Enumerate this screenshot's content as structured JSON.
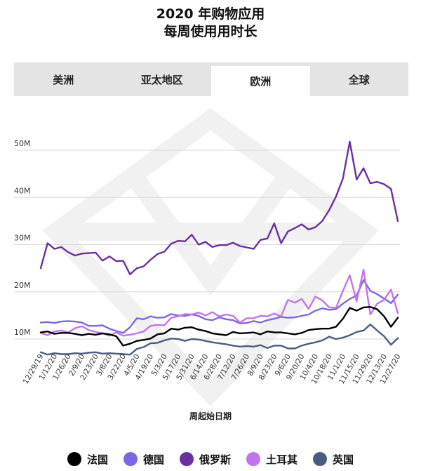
{
  "header": {
    "title_line1": "2020 年购物应用",
    "title_line2": "每周使用用时长"
  },
  "tabs": [
    {
      "label": "美洲",
      "active": false
    },
    {
      "label": "亚太地区",
      "active": false
    },
    {
      "label": "欧洲",
      "active": true
    },
    {
      "label": "全球",
      "active": false
    }
  ],
  "chart_data": {
    "type": "line",
    "title": "2020 年购物应用 每周使用用时长",
    "xlabel": "周起始日期",
    "ylabel": "",
    "ylim": [
      0,
      55
    ],
    "yticks": [
      10,
      20,
      30,
      40,
      50
    ],
    "ytick_labels": [
      "10M",
      "20M",
      "30M",
      "40M",
      "50M"
    ],
    "grid": true,
    "legend_position": "bottom",
    "x_tick_labels": [
      "12/29/19",
      "1/12/20",
      "1/26/20",
      "2/9/20",
      "2/23/20",
      "3/8/20",
      "3/22/20",
      "4/5/20",
      "4/19/20",
      "5/3/20",
      "5/17/20",
      "5/31/20",
      "6/14/20",
      "6/28/20",
      "7/12/20",
      "7/26/20",
      "8/9/20",
      "8/23/20",
      "9/6/20",
      "9/20/20",
      "10/4/20",
      "10/18/20",
      "11/1/20",
      "11/15/20",
      "11/29/20",
      "12/13/20",
      "12/27/20"
    ],
    "x": [
      "12/29/19",
      "1/5/20",
      "1/12/20",
      "1/19/20",
      "1/26/20",
      "2/2/20",
      "2/9/20",
      "2/16/20",
      "2/23/20",
      "3/1/20",
      "3/8/20",
      "3/15/20",
      "3/22/20",
      "3/29/20",
      "4/5/20",
      "4/12/20",
      "4/19/20",
      "4/26/20",
      "5/3/20",
      "5/10/20",
      "5/17/20",
      "5/24/20",
      "5/31/20",
      "6/7/20",
      "6/14/20",
      "6/21/20",
      "6/28/20",
      "7/5/20",
      "7/12/20",
      "7/19/20",
      "7/26/20",
      "8/2/20",
      "8/9/20",
      "8/16/20",
      "8/23/20",
      "8/30/20",
      "9/6/20",
      "9/13/20",
      "9/20/20",
      "9/27/20",
      "10/4/20",
      "10/11/20",
      "10/18/20",
      "10/25/20",
      "11/1/20",
      "11/8/20",
      "11/15/20",
      "11/22/20",
      "11/29/20",
      "12/6/20",
      "12/13/20",
      "12/20/20",
      "12/27/20"
    ],
    "series": [
      {
        "name": "法国",
        "color": "#000000",
        "values": [
          11.4,
          11.6,
          11.1,
          11.3,
          11.3,
          11.1,
          10.8,
          11.1,
          10.9,
          11.2,
          11.0,
          10.6,
          8.6,
          9.0,
          9.6,
          9.8,
          10.1,
          11.0,
          11.2,
          12.2,
          12.0,
          12.4,
          12.5,
          12.0,
          11.7,
          11.2,
          11.0,
          10.8,
          11.5,
          11.2,
          11.3,
          11.4,
          11.0,
          11.6,
          11.4,
          11.4,
          11.2,
          11.0,
          11.3,
          11.9,
          12.1,
          12.2,
          12.2,
          12.6,
          14.3,
          16.6,
          16.0,
          16.7,
          16.8,
          16.3,
          14.8,
          12.6,
          14.5
        ]
      },
      {
        "name": "德国",
        "color": "#7868e6",
        "values": [
          13.5,
          13.6,
          13.4,
          13.7,
          13.8,
          13.7,
          13.5,
          12.8,
          12.8,
          12.9,
          12.2,
          11.7,
          11.3,
          12.5,
          14.4,
          14.2,
          14.8,
          14.5,
          14.6,
          15.3,
          15.0,
          14.9,
          15.2,
          14.9,
          14.2,
          14.0,
          14.6,
          14.2,
          14.0,
          13.3,
          13.4,
          13.8,
          13.5,
          14.0,
          14.3,
          14.7,
          14.5,
          14.6,
          14.9,
          15.2,
          16.0,
          16.5,
          16.2,
          16.3,
          17.5,
          18.5,
          19.2,
          22.5,
          20.2,
          19.5,
          18.6,
          17.6,
          19.4
        ]
      },
      {
        "name": "俄罗斯",
        "color": "#6a2fa0",
        "values": [
          25.0,
          30.3,
          29.1,
          29.5,
          28.4,
          27.7,
          28.1,
          28.2,
          28.3,
          26.6,
          27.5,
          26.5,
          26.6,
          23.7,
          25.0,
          25.4,
          26.8,
          28.0,
          28.5,
          30.2,
          30.8,
          30.7,
          32.1,
          30.0,
          30.6,
          29.5,
          29.9,
          29.9,
          30.4,
          29.7,
          29.4,
          29.1,
          31.0,
          31.3,
          34.5,
          30.3,
          32.8,
          33.5,
          34.3,
          33.2,
          33.7,
          35.0,
          37.3,
          40.2,
          44.0,
          51.8,
          43.8,
          46.2,
          43.0,
          43.3,
          42.8,
          41.8,
          35.0
        ]
      },
      {
        "name": "土耳其",
        "color": "#c273ee",
        "values": [
          11.3,
          10.8,
          11.6,
          11.8,
          11.4,
          12.3,
          12.7,
          11.9,
          11.5,
          11.2,
          10.7,
          11.4,
          10.7,
          10.9,
          11.2,
          11.6,
          12.8,
          13.0,
          12.9,
          14.5,
          14.8,
          15.3,
          15.2,
          15.6,
          15.0,
          15.7,
          14.8,
          15.2,
          14.9,
          13.5,
          14.4,
          14.4,
          14.9,
          14.8,
          15.4,
          14.8,
          18.3,
          17.7,
          18.5,
          16.4,
          19.0,
          18.2,
          16.7,
          16.6,
          20.2,
          23.5,
          18.0,
          24.7,
          15.2,
          17.5,
          18.3,
          20.5,
          15.5
        ]
      },
      {
        "name": "英国",
        "color": "#4a5d80",
        "values": [
          7.2,
          6.7,
          7.0,
          6.8,
          6.8,
          7.0,
          6.9,
          7.1,
          7.2,
          6.9,
          7.0,
          6.9,
          6.8,
          6.7,
          7.9,
          8.3,
          9.1,
          9.2,
          9.7,
          10.1,
          10.0,
          9.6,
          10.0,
          9.9,
          9.6,
          9.3,
          9.1,
          8.9,
          8.6,
          8.4,
          8.5,
          8.4,
          8.7,
          8.1,
          8.6,
          8.6,
          8.0,
          8.0,
          8.6,
          9.0,
          9.3,
          9.7,
          10.5,
          10.0,
          10.3,
          10.8,
          11.5,
          11.8,
          13.1,
          11.8,
          10.6,
          8.8,
          10.2
        ]
      }
    ]
  },
  "legend": [
    {
      "label": "法国",
      "color": "#000000"
    },
    {
      "label": "德国",
      "color": "#7868e6"
    },
    {
      "label": "俄罗斯",
      "color": "#6a2fa0"
    },
    {
      "label": "土耳其",
      "color": "#c273ee"
    },
    {
      "label": "英国",
      "color": "#4a5d80"
    }
  ]
}
